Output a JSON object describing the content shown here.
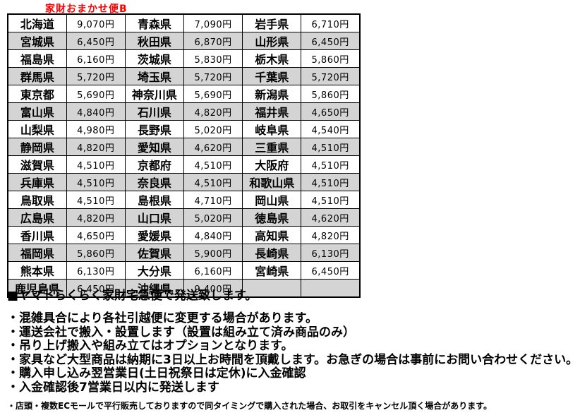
{
  "caption": "家財おまかせ便B",
  "table": {
    "rows": [
      [
        "北海道",
        "9,070円",
        "青森県",
        "7,090円",
        "岩手県",
        "6,710円"
      ],
      [
        "宮城県",
        "6,450円",
        "秋田県",
        "6,870円",
        "山形県",
        "6,450円"
      ],
      [
        "福島県",
        "6,160円",
        "茨城県",
        "5,830円",
        "栃木県",
        "5,860円"
      ],
      [
        "群馬県",
        "5,720円",
        "埼玉県",
        "5,720円",
        "千葉県",
        "5,720円"
      ],
      [
        "東京都",
        "5,690円",
        "神奈川県",
        "5,690円",
        "新潟県",
        "5,860円"
      ],
      [
        "富山県",
        "4,840円",
        "石川県",
        "4,820円",
        "福井県",
        "4,650円"
      ],
      [
        "山梨県",
        "4,980円",
        "長野県",
        "5,020円",
        "岐阜県",
        "4,540円"
      ],
      [
        "静岡県",
        "4,820円",
        "愛知県",
        "4,620円",
        "三重県",
        "4,510円"
      ],
      [
        "滋賀県",
        "4,510円",
        "京都府",
        "4,510円",
        "大阪府",
        "4,510円"
      ],
      [
        "兵庫県",
        "4,510円",
        "奈良県",
        "4,510円",
        "和歌山県",
        "4,510円"
      ],
      [
        "鳥取県",
        "4,510円",
        "島根県",
        "4,710円",
        "岡山県",
        "4,510円"
      ],
      [
        "広島県",
        "4,820円",
        "山口県",
        "5,020円",
        "徳島県",
        "4,620円"
      ],
      [
        "香川県",
        "4,650円",
        "愛媛県",
        "4,840円",
        "高知県",
        "4,820円"
      ],
      [
        "福岡県",
        "5,860円",
        "佐賀県",
        "5,900円",
        "長崎県",
        "6,130円"
      ],
      [
        "熊本県",
        "6,130円",
        "大分県",
        "6,160円",
        "宮崎県",
        "6,450円"
      ],
      [
        "鹿児島県",
        "6,450円",
        "沖縄県",
        "9,400円",
        "",
        ""
      ]
    ]
  },
  "notes": {
    "heading": "■ヤマトらくらく家財宅急便で発送致します。",
    "bullets": [
      "・混雑具合により各社引越便に変更する場合があります。",
      "・運送会社で搬入・設置します（設置は組み立て済み商品のみ）",
      "・吊り上げ搬入や組み立てはオプションとなります。",
      "・家具など大型商品は納期に3日以上お時間を頂戴します。お急ぎの場合は事前にお問い合わせください。",
      "・購入申し込み翌営業日(土日祝祭日は定休)に入金確認",
      "・入金確認後7営業日以内に発送します"
    ],
    "fine_print": "・店頭・複数ECモールで平行販売しておりますので同タイミングで購入された場合、お取引をキャンセル頂く場合があります。"
  },
  "colors": {
    "caption_red": "#ff0000",
    "row_shade": "#d4d4d4",
    "border": "#000000"
  }
}
